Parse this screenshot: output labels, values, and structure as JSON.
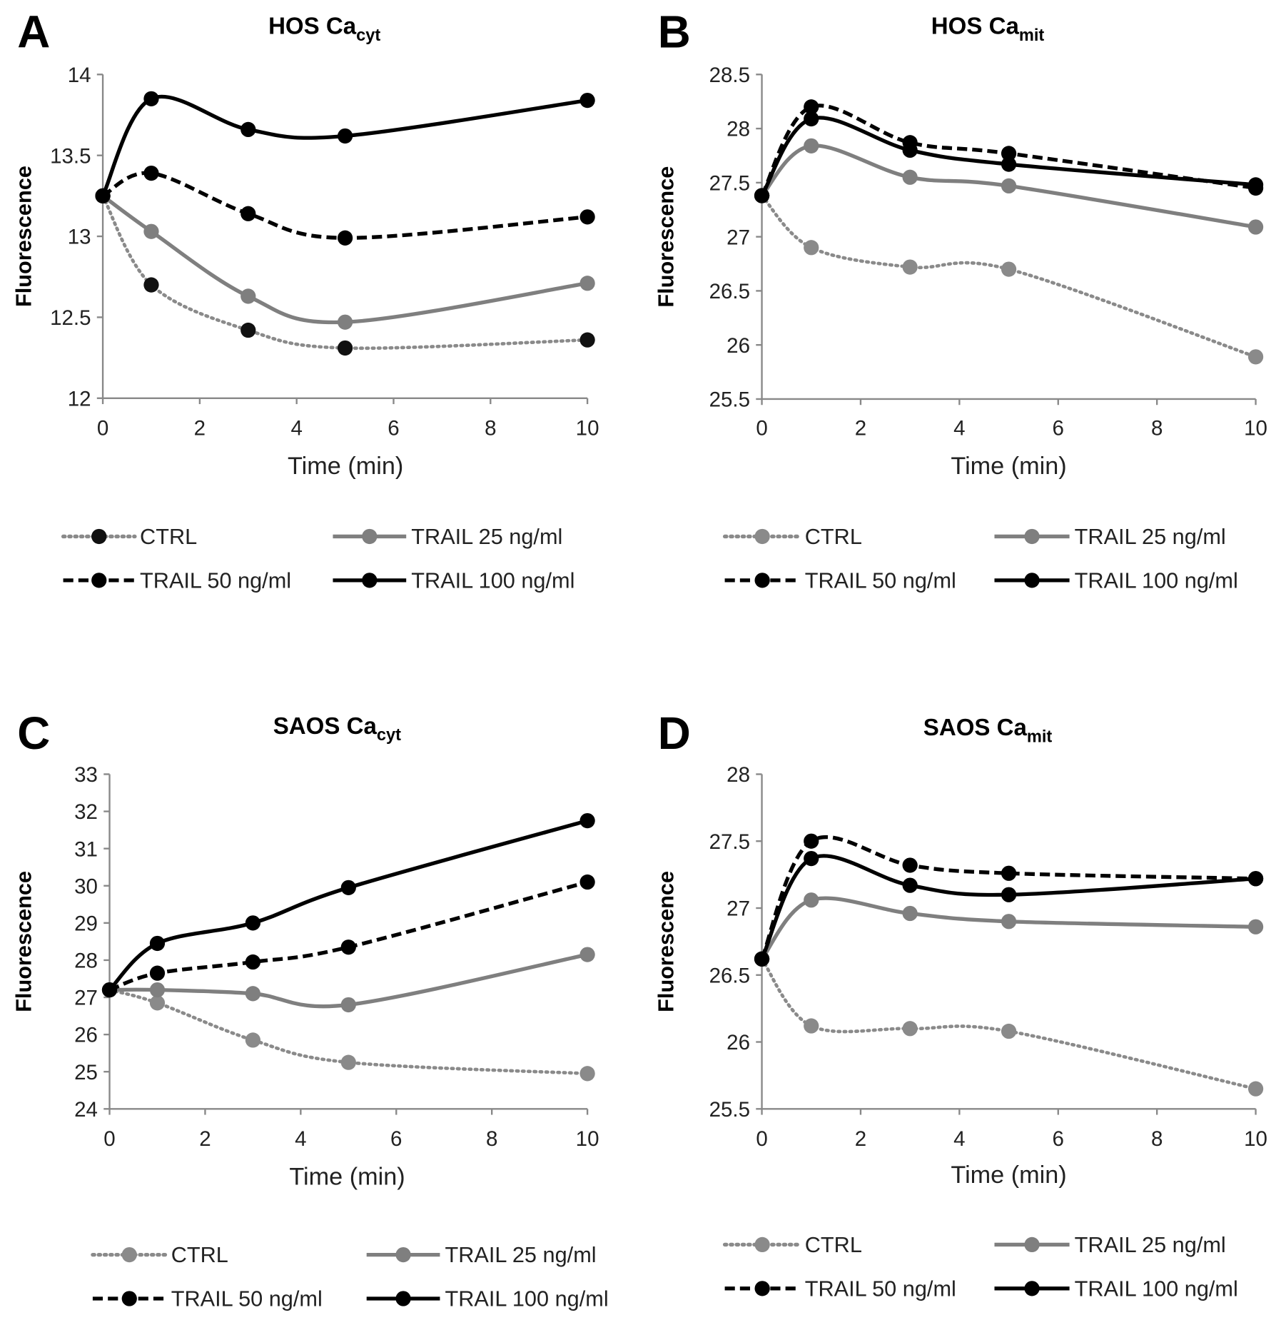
{
  "chart_data": [
    {
      "panel": "A",
      "type": "line",
      "title": "HOS Ca",
      "title_sub": "cyt",
      "xlabel": "Time (min)",
      "ylabel": "Fluorescence",
      "x": [
        0,
        1,
        3,
        5,
        10
      ],
      "xlim": [
        0,
        10
      ],
      "xticks": [
        0,
        2,
        4,
        6,
        8,
        10
      ],
      "ylim": [
        12,
        14
      ],
      "yticks": [
        12,
        12.5,
        13,
        13.5,
        14
      ],
      "series": [
        {
          "name": "CTRL",
          "style": "dotted",
          "color": "#8a8a8a",
          "marker": "#111111",
          "values": [
            13.25,
            12.7,
            12.42,
            12.31,
            12.36
          ]
        },
        {
          "name": "TRAIL 25 ng/ml",
          "style": "solid",
          "color": "#7f7f7f",
          "marker": "#7f7f7f",
          "values": [
            13.25,
            13.03,
            12.63,
            12.47,
            12.71
          ]
        },
        {
          "name": "TRAIL 50 ng/ml",
          "style": "dashed",
          "color": "#000000",
          "marker": "#000000",
          "values": [
            13.25,
            13.39,
            13.14,
            12.99,
            13.12
          ]
        },
        {
          "name": "TRAIL 100 ng/ml",
          "style": "solid",
          "color": "#000000",
          "marker": "#000000",
          "values": [
            13.25,
            13.85,
            13.66,
            13.62,
            13.84
          ]
        }
      ]
    },
    {
      "panel": "B",
      "type": "line",
      "title": "HOS Ca",
      "title_sub": "mit",
      "xlabel": "Time (min)",
      "ylabel": "Fluorescence",
      "x": [
        0,
        1,
        3,
        5,
        10
      ],
      "xlim": [
        0,
        10
      ],
      "xticks": [
        0,
        2,
        4,
        6,
        8,
        10
      ],
      "ylim": [
        25.5,
        28.5
      ],
      "yticks": [
        25.5,
        26,
        26.5,
        27,
        27.5,
        28,
        28.5
      ],
      "series": [
        {
          "name": "CTRL",
          "style": "dotted",
          "color": "#8a8a8a",
          "marker": "#8a8a8a",
          "values": [
            27.38,
            26.9,
            26.72,
            26.7,
            25.89
          ]
        },
        {
          "name": "TRAIL 25 ng/ml",
          "style": "solid",
          "color": "#7f7f7f",
          "marker": "#7f7f7f",
          "values": [
            27.38,
            27.84,
            27.55,
            27.47,
            27.09
          ]
        },
        {
          "name": "TRAIL 50 ng/ml",
          "style": "dashed",
          "color": "#000000",
          "marker": "#000000",
          "values": [
            27.38,
            28.2,
            27.87,
            27.77,
            27.45
          ]
        },
        {
          "name": "TRAIL 100 ng/ml",
          "style": "solid",
          "color": "#000000",
          "marker": "#000000",
          "values": [
            27.38,
            28.09,
            27.8,
            27.67,
            27.48
          ]
        }
      ]
    },
    {
      "panel": "C",
      "type": "line",
      "title": "SAOS Ca",
      "title_sub": "cyt",
      "xlabel": "Time (min)",
      "ylabel": "Fluorescence",
      "x": [
        0,
        1,
        3,
        5,
        10
      ],
      "xlim": [
        0,
        10
      ],
      "xticks": [
        0,
        2,
        4,
        6,
        8,
        10
      ],
      "ylim": [
        24,
        33
      ],
      "yticks": [
        24,
        25,
        26,
        27,
        28,
        29,
        30,
        31,
        32,
        33
      ],
      "series": [
        {
          "name": "CTRL",
          "style": "dotted",
          "color": "#8a8a8a",
          "marker": "#8a8a8a",
          "values": [
            27.2,
            26.85,
            25.85,
            25.25,
            24.95
          ]
        },
        {
          "name": "TRAIL 25 ng/ml",
          "style": "solid",
          "color": "#7f7f7f",
          "marker": "#7f7f7f",
          "values": [
            27.2,
            27.2,
            27.1,
            26.8,
            28.15
          ]
        },
        {
          "name": "TRAIL 50 ng/ml",
          "style": "dashed",
          "color": "#000000",
          "marker": "#000000",
          "values": [
            27.2,
            27.65,
            27.95,
            28.35,
            30.1
          ]
        },
        {
          "name": "TRAIL 100 ng/ml",
          "style": "solid",
          "color": "#000000",
          "marker": "#000000",
          "values": [
            27.2,
            28.45,
            29.0,
            29.95,
            31.75
          ]
        }
      ]
    },
    {
      "panel": "D",
      "type": "line",
      "title": "SAOS Ca",
      "title_sub": "mit",
      "xlabel": "Time (min)",
      "ylabel": "Fluorescence",
      "x": [
        0,
        1,
        3,
        5,
        10
      ],
      "xlim": [
        0,
        10
      ],
      "xticks": [
        0,
        2,
        4,
        6,
        8,
        10
      ],
      "ylim": [
        25.5,
        28
      ],
      "yticks": [
        25.5,
        26,
        26.5,
        27,
        27.5,
        28
      ],
      "series": [
        {
          "name": "CTRL",
          "style": "dotted",
          "color": "#8a8a8a",
          "marker": "#8a8a8a",
          "values": [
            26.62,
            26.12,
            26.1,
            26.08,
            25.65
          ]
        },
        {
          "name": "TRAIL 25 ng/ml",
          "style": "solid",
          "color": "#7f7f7f",
          "marker": "#7f7f7f",
          "values": [
            26.62,
            27.06,
            26.96,
            26.9,
            26.86
          ]
        },
        {
          "name": "TRAIL 50 ng/ml",
          "style": "dashed",
          "color": "#000000",
          "marker": "#000000",
          "values": [
            26.62,
            27.5,
            27.32,
            27.26,
            27.22
          ]
        },
        {
          "name": "TRAIL 100 ng/ml",
          "style": "solid",
          "color": "#000000",
          "marker": "#000000",
          "values": [
            26.62,
            27.37,
            27.17,
            27.1,
            27.22
          ]
        }
      ]
    }
  ]
}
